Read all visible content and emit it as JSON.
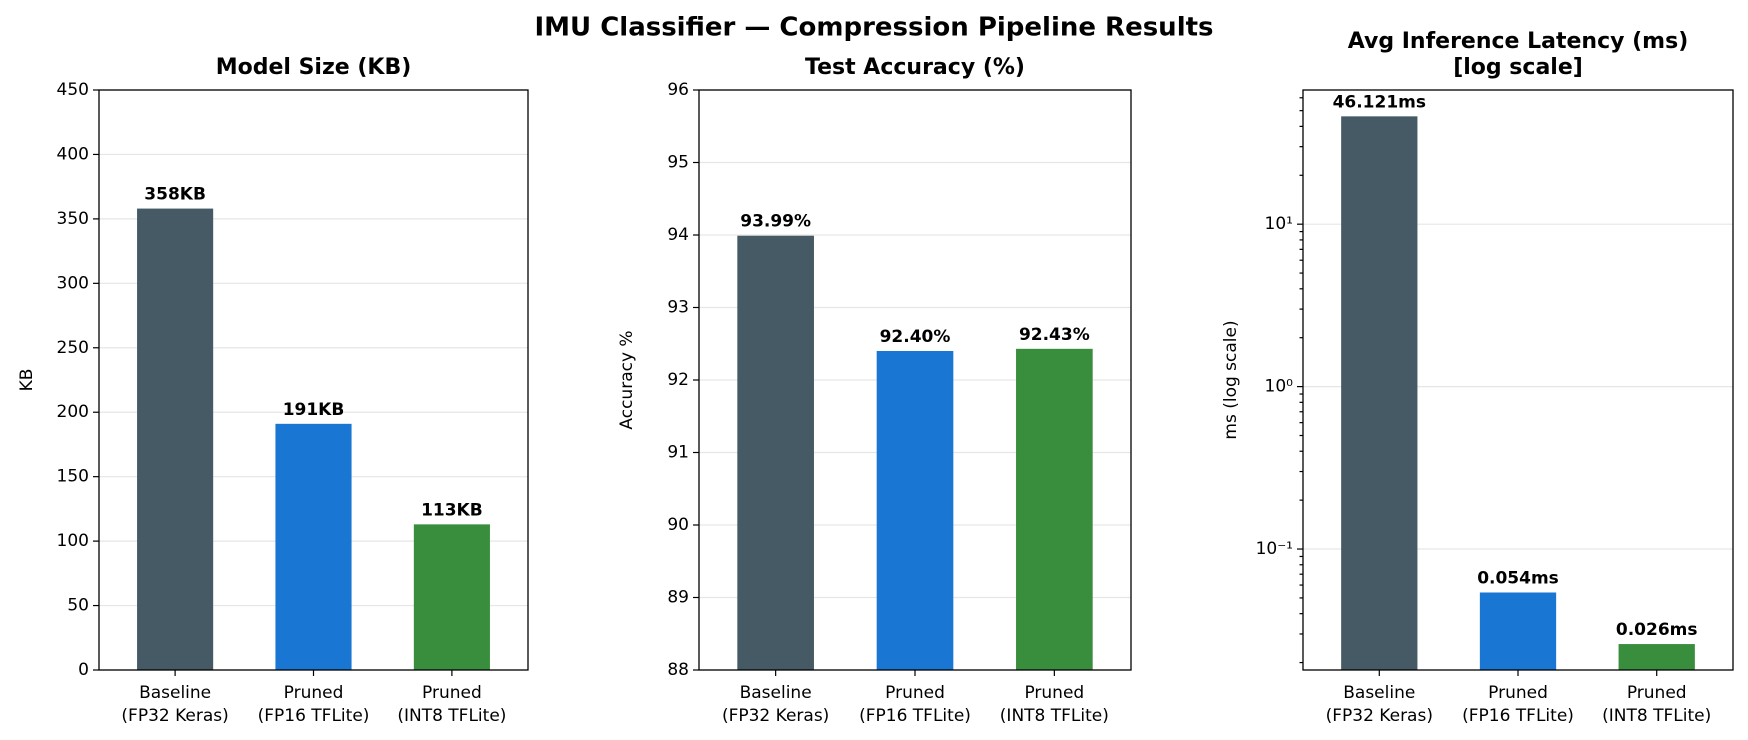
{
  "title": "IMU Classifier — Compression Pipeline Results",
  "chart_data": [
    {
      "type": "bar",
      "title": "Model Size (KB)",
      "ylabel": "KB",
      "categories": [
        "Baseline\n(FP32 Keras)",
        "Pruned\n(FP16 TFLite)",
        "Pruned\n(INT8 TFLite)"
      ],
      "values": [
        358,
        191,
        113
      ],
      "value_labels": [
        "358KB",
        "191KB",
        "113KB"
      ],
      "colors": [
        "#455a64",
        "#1976d2",
        "#388e3c"
      ],
      "ylim": [
        0,
        450
      ],
      "yticks": [
        0,
        50,
        100,
        150,
        200,
        250,
        300,
        350,
        400,
        450
      ],
      "grid": true,
      "log": false
    },
    {
      "type": "bar",
      "title": "Test Accuracy (%)",
      "ylabel": "Accuracy %",
      "categories": [
        "Baseline\n(FP32 Keras)",
        "Pruned\n(FP16 TFLite)",
        "Pruned\n(INT8 TFLite)"
      ],
      "values": [
        93.99,
        92.4,
        92.43
      ],
      "value_labels": [
        "93.99%",
        "92.40%",
        "92.43%"
      ],
      "colors": [
        "#455a64",
        "#1976d2",
        "#388e3c"
      ],
      "ylim": [
        88,
        96
      ],
      "yticks": [
        88,
        89,
        90,
        91,
        92,
        93,
        94,
        95,
        96
      ],
      "grid": true,
      "log": false
    },
    {
      "type": "bar",
      "title": "Avg Inference Latency (ms)\n[log scale]",
      "ylabel": "ms (log scale)",
      "categories": [
        "Baseline\n(FP32 Keras)",
        "Pruned\n(FP16 TFLite)",
        "Pruned\n(INT8 TFLite)"
      ],
      "values": [
        46.121,
        0.054,
        0.026
      ],
      "value_labels": [
        "46.121ms",
        "0.054ms",
        "0.026ms"
      ],
      "colors": [
        "#455a64",
        "#1976d2",
        "#388e3c"
      ],
      "ylim": [
        0.018,
        67
      ],
      "yticks": [
        {
          "value": 0.1,
          "label": "10⁻¹"
        },
        {
          "value": 1,
          "label": "10⁰"
        },
        {
          "value": 10,
          "label": "10¹"
        }
      ],
      "grid": true,
      "log": true
    }
  ]
}
